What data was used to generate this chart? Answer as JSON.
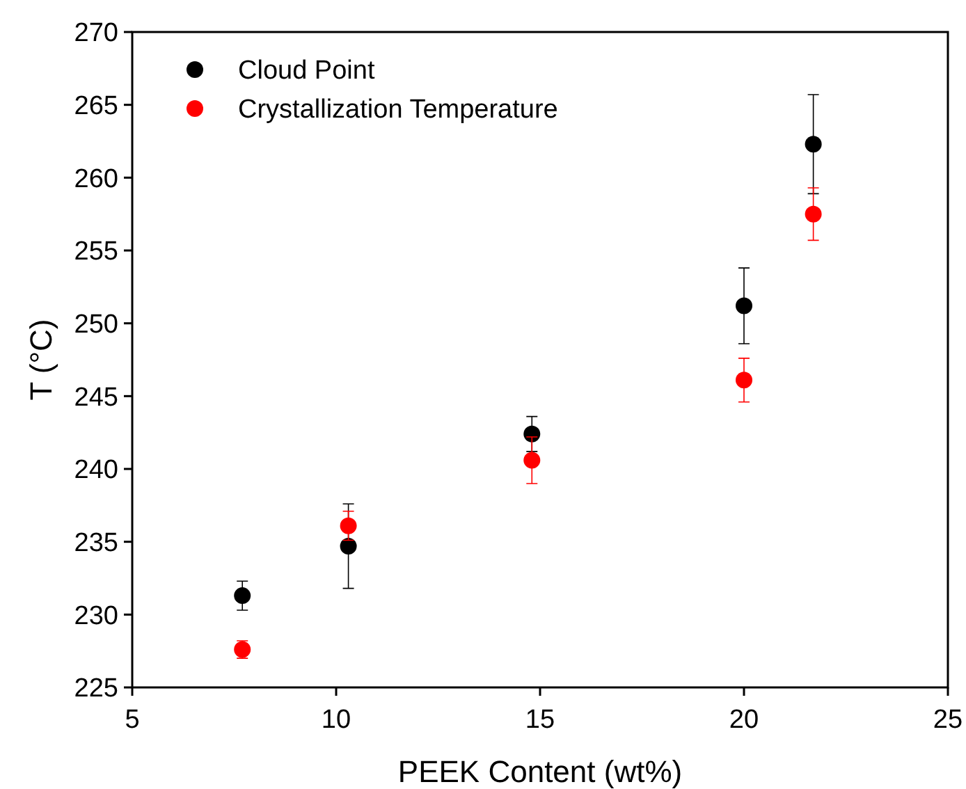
{
  "chart_data": {
    "type": "scatter",
    "xlabel": "PEEK Content (wt%)",
    "ylabel": "T (°C)",
    "xlim": [
      5,
      25
    ],
    "xticks": [
      5,
      10,
      15,
      20,
      25
    ],
    "ylim": [
      225,
      270
    ],
    "yticks": [
      225,
      230,
      235,
      240,
      245,
      250,
      255,
      260,
      265,
      270
    ],
    "grid": false,
    "legend": "top left",
    "marker": "circle",
    "series": [
      {
        "name": "Cloud Point",
        "color": "#000000",
        "x": [
          7.7,
          10.3,
          14.8,
          20.0,
          21.7
        ],
        "values": [
          231.3,
          234.7,
          242.4,
          251.2,
          262.3
        ],
        "errors": [
          1.0,
          2.9,
          1.2,
          2.6,
          3.4
        ]
      },
      {
        "name": "Crystallization Temperature",
        "color": "#ff0000",
        "x": [
          7.7,
          10.3,
          14.8,
          20.0,
          21.7
        ],
        "values": [
          227.6,
          236.1,
          240.6,
          246.1,
          257.5
        ],
        "errors": [
          0.6,
          1.0,
          1.6,
          1.5,
          1.8
        ]
      }
    ]
  }
}
